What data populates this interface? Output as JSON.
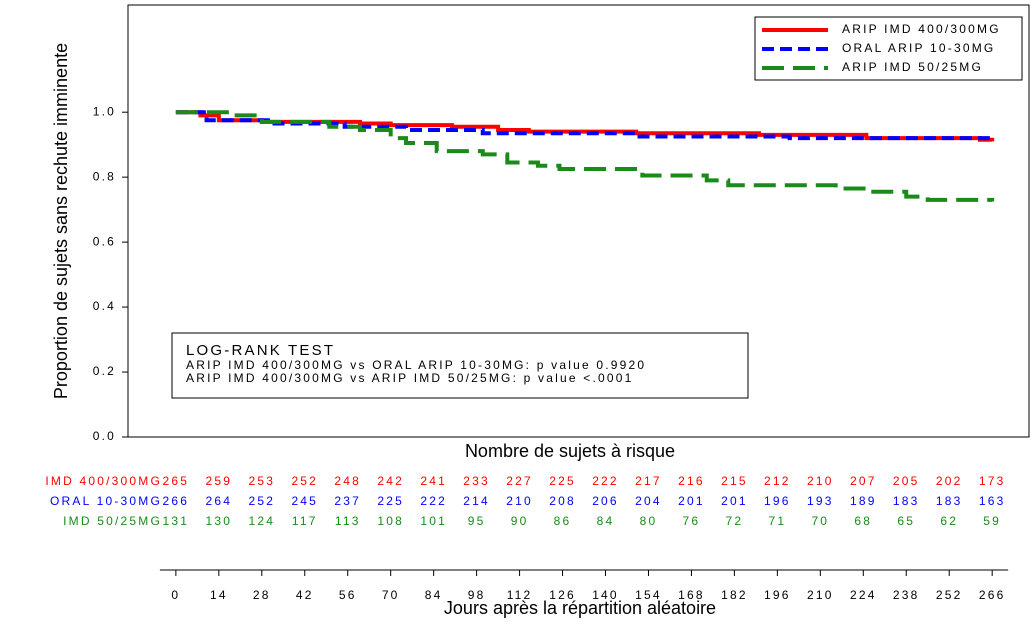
{
  "chart_data": {
    "type": "step",
    "y_label": "Proportion de sujets sans rechute imminente",
    "x_label": "Jours après la répartition aléatoire",
    "xlim": [
      -15.6,
      278
    ],
    "ylim": [
      0,
      1.33
    ],
    "xticks": [
      0,
      14,
      28,
      42,
      56,
      70,
      84,
      98,
      112,
      126,
      140,
      154,
      168,
      182,
      196,
      210,
      224,
      238,
      252,
      266
    ],
    "yticks": [
      {
        "value": 0,
        "label": "0.0"
      },
      {
        "value": 0.2,
        "label": "0.2"
      },
      {
        "value": 0.4,
        "label": "0.4"
      },
      {
        "value": 0.6,
        "label": "0.6"
      },
      {
        "value": 0.8,
        "label": "0.8"
      },
      {
        "value": 1,
        "label": "1.0"
      }
    ],
    "legend": "upper right",
    "series": [
      {
        "name": "ARIP IMD 400/300MG",
        "color": "#ff0000",
        "dash": "solid",
        "x": [
          0,
          8,
          14,
          28,
          42,
          60,
          70,
          90,
          105,
          115,
          150,
          190,
          225,
          262,
          266
        ],
        "values": [
          1.0,
          0.99,
          0.975,
          0.97,
          0.97,
          0.965,
          0.96,
          0.955,
          0.945,
          0.94,
          0.935,
          0.93,
          0.92,
          0.915,
          0.91
        ]
      },
      {
        "name": "ORAL ARIP 10-30MG",
        "color": "#0000ff",
        "dash": "short",
        "x": [
          0,
          10,
          30,
          55,
          75,
          100,
          150,
          200,
          266
        ],
        "values": [
          1.0,
          0.975,
          0.965,
          0.955,
          0.945,
          0.935,
          0.925,
          0.92,
          0.915
        ]
      },
      {
        "name": "ARIP IMD 50/25MG",
        "color": "#1a8a1a",
        "dash": "long",
        "x": [
          0,
          18,
          28,
          50,
          60,
          70,
          75,
          85,
          100,
          108,
          118,
          125,
          152,
          173,
          180,
          215,
          225,
          238,
          245,
          266
        ],
        "values": [
          1.0,
          0.99,
          0.97,
          0.955,
          0.945,
          0.92,
          0.905,
          0.88,
          0.87,
          0.845,
          0.835,
          0.825,
          0.805,
          0.79,
          0.775,
          0.765,
          0.755,
          0.74,
          0.73,
          0.725
        ]
      }
    ],
    "annotation": [
      "LOG-RANK TEST",
      "ARIP IMD 400/300MG vs ORAL ARIP 10-30MG: p value 0.9920",
      "ARIP IMD 400/300MG vs ARIP IMD 50/25MG:  p value <.0001"
    ],
    "at_risk": {
      "title": "Nombre de sujets à risque",
      "rows": [
        {
          "label": "IMD 400/300MG",
          "color": "#ff0000",
          "values": [
            265,
            259,
            253,
            252,
            248,
            242,
            241,
            233,
            227,
            225,
            222,
            217,
            216,
            215,
            212,
            210,
            207,
            205,
            202,
            173
          ]
        },
        {
          "label": "ORAL 10-30MG",
          "color": "#0000ff",
          "values": [
            266,
            264,
            252,
            245,
            237,
            225,
            222,
            214,
            210,
            208,
            206,
            204,
            201,
            201,
            196,
            193,
            189,
            183,
            183,
            163
          ]
        },
        {
          "label": "IMD 50/25MG",
          "color": "#1a8a1a",
          "values": [
            131,
            130,
            124,
            117,
            113,
            108,
            101,
            95,
            90,
            86,
            84,
            80,
            76,
            72,
            71,
            70,
            68,
            65,
            62,
            59
          ]
        }
      ]
    }
  }
}
